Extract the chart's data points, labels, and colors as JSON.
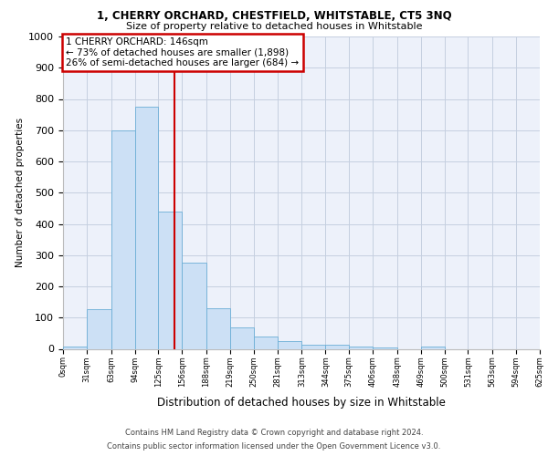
{
  "title1": "1, CHERRY ORCHARD, CHESTFIELD, WHITSTABLE, CT5 3NQ",
  "title2": "Size of property relative to detached houses in Whitstable",
  "xlabel": "Distribution of detached houses by size in Whitstable",
  "ylabel": "Number of detached properties",
  "bar_values": [
    8,
    128,
    700,
    775,
    440,
    275,
    130,
    68,
    38,
    25,
    12,
    12,
    8,
    3,
    0,
    8,
    0,
    0,
    0,
    0
  ],
  "bin_edges": [
    0,
    31,
    63,
    94,
    125,
    156,
    188,
    219,
    250,
    281,
    313,
    344,
    375,
    406,
    438,
    469,
    500,
    531,
    563,
    594,
    625
  ],
  "bar_color": "#cce0f5",
  "bar_edge_color": "#6baed6",
  "property_line_x": 146,
  "ylim": [
    0,
    1000
  ],
  "annotation_line1": "1 CHERRY ORCHARD: 146sqm",
  "annotation_line2": "← 73% of detached houses are smaller (1,898)",
  "annotation_line3": "26% of semi-detached houses are larger (684) →",
  "annotation_box_color": "white",
  "annotation_box_edge_color": "#cc0000",
  "red_line_color": "#cc0000",
  "footer1": "Contains HM Land Registry data © Crown copyright and database right 2024.",
  "footer2": "Contains public sector information licensed under the Open Government Licence v3.0.",
  "background_color": "#edf1fa",
  "grid_color": "#c5cfe0",
  "tick_labels": [
    "0sqm",
    "31sqm",
    "63sqm",
    "94sqm",
    "125sqm",
    "156sqm",
    "188sqm",
    "219sqm",
    "250sqm",
    "281sqm",
    "313sqm",
    "344sqm",
    "375sqm",
    "406sqm",
    "438sqm",
    "469sqm",
    "500sqm",
    "531sqm",
    "563sqm",
    "594sqm",
    "625sqm"
  ],
  "yticks": [
    0,
    100,
    200,
    300,
    400,
    500,
    600,
    700,
    800,
    900,
    1000
  ]
}
